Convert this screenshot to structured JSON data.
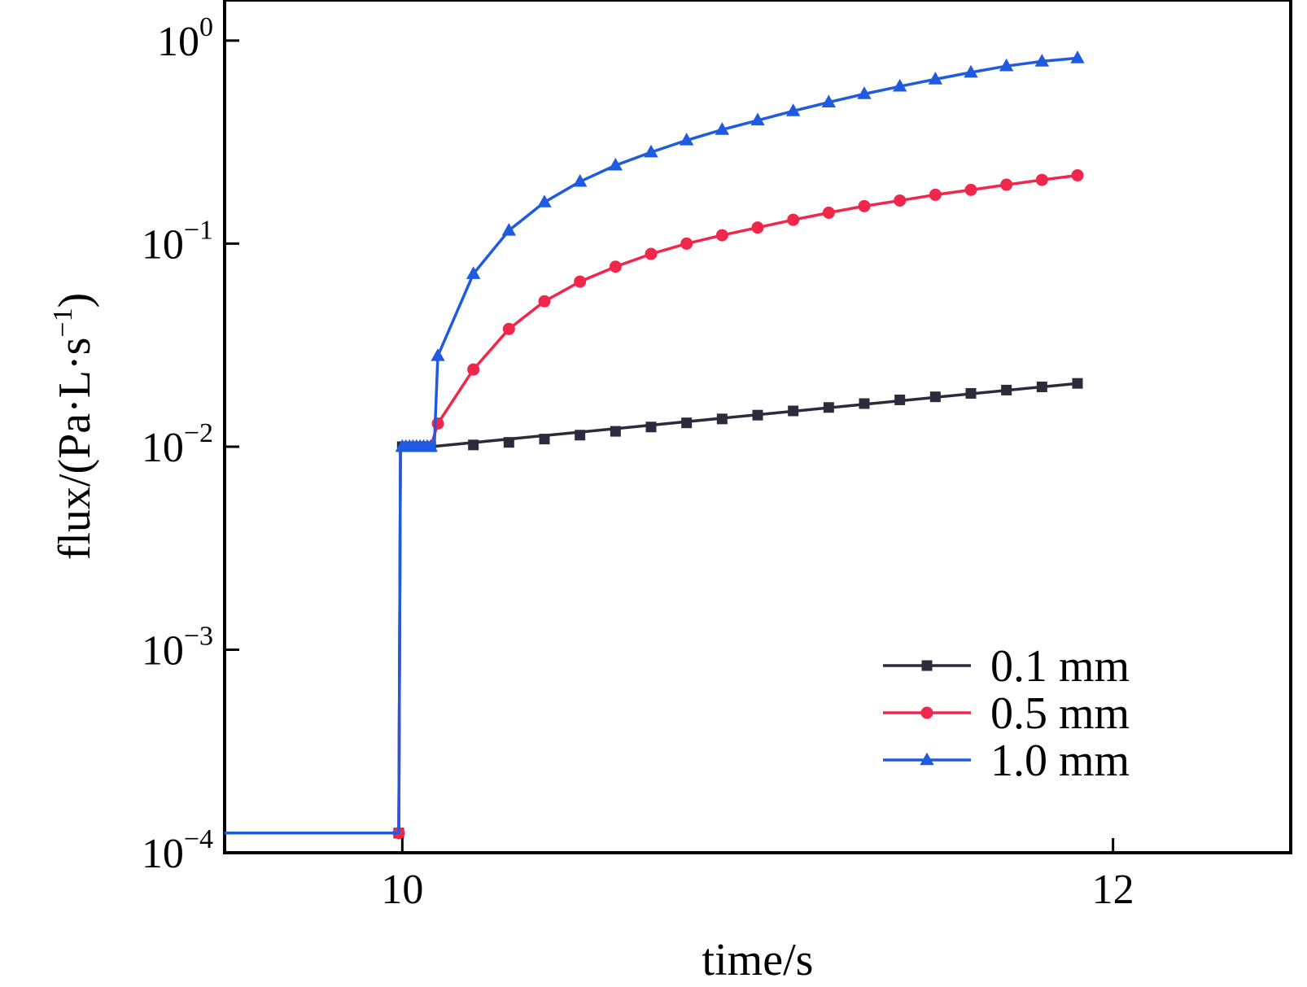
{
  "chart_data": {
    "type": "line",
    "xlabel": "time/s",
    "ylabel": {
      "base": "flux/(Pa·L·s",
      "exp": "−1",
      "close": ")"
    },
    "xlim": [
      9.5,
      12.5
    ],
    "ylim_log10": [
      -4,
      0.2
    ],
    "yscale": "log",
    "x_ticks": [
      {
        "value": 10,
        "label": "10"
      },
      {
        "value": 12,
        "label": "12"
      }
    ],
    "y_ticks": [
      {
        "exp_value": 0,
        "base": "10",
        "exp": "0"
      },
      {
        "exp_value": -1,
        "base": "10",
        "exp": "−1"
      },
      {
        "exp_value": -2,
        "base": "10",
        "exp": "−2"
      },
      {
        "exp_value": -3,
        "base": "10",
        "exp": "−3"
      },
      {
        "exp_value": -4,
        "base": "10",
        "exp": "−4"
      }
    ],
    "legend_position": "bottom-right",
    "series": [
      {
        "name": "0.1 mm",
        "color": "#2b2b3b",
        "marker": "square",
        "line": [
          [
            9.5,
            0.000125
          ],
          [
            9.99,
            0.000125
          ],
          [
            9.995,
            0.01
          ],
          [
            10.08,
            0.01
          ],
          [
            11.9,
            0.0205
          ]
        ],
        "markers": [
          [
            9.99,
            0.000125
          ],
          [
            10.0,
            0.01
          ],
          [
            10.01,
            0.01
          ],
          [
            10.02,
            0.01
          ],
          [
            10.03,
            0.01
          ],
          [
            10.04,
            0.01
          ],
          [
            10.05,
            0.01
          ],
          [
            10.06,
            0.01
          ],
          [
            10.07,
            0.01
          ],
          [
            10.08,
            0.01
          ],
          [
            10.2,
            0.0102
          ],
          [
            10.3,
            0.0105
          ],
          [
            10.4,
            0.0109
          ],
          [
            10.5,
            0.0114
          ],
          [
            10.6,
            0.0119
          ],
          [
            10.7,
            0.0125
          ],
          [
            10.8,
            0.0131
          ],
          [
            10.9,
            0.0137
          ],
          [
            11.0,
            0.0143
          ],
          [
            11.1,
            0.015
          ],
          [
            11.2,
            0.0156
          ],
          [
            11.3,
            0.0163
          ],
          [
            11.4,
            0.017
          ],
          [
            11.5,
            0.0176
          ],
          [
            11.6,
            0.0183
          ],
          [
            11.7,
            0.019
          ],
          [
            11.8,
            0.0197
          ],
          [
            11.9,
            0.0205
          ]
        ]
      },
      {
        "name": "0.5 mm",
        "color": "#f0264a",
        "marker": "circle",
        "line": [
          [
            9.5,
            0.000125
          ],
          [
            9.99,
            0.000125
          ],
          [
            9.995,
            0.01
          ],
          [
            10.08,
            0.01
          ],
          [
            10.1,
            0.013
          ],
          [
            10.2,
            0.024
          ],
          [
            10.3,
            0.038
          ],
          [
            10.4,
            0.052
          ],
          [
            10.5,
            0.065
          ],
          [
            10.6,
            0.077
          ],
          [
            10.7,
            0.089
          ],
          [
            10.8,
            0.1
          ],
          [
            10.9,
            0.11
          ],
          [
            11.0,
            0.12
          ],
          [
            11.1,
            0.131
          ],
          [
            11.2,
            0.142
          ],
          [
            11.3,
            0.153
          ],
          [
            11.4,
            0.163
          ],
          [
            11.5,
            0.174
          ],
          [
            11.6,
            0.184
          ],
          [
            11.7,
            0.195
          ],
          [
            11.8,
            0.206
          ],
          [
            11.9,
            0.217
          ]
        ],
        "markers": [
          [
            9.99,
            0.000125
          ],
          [
            10.1,
            0.013
          ],
          [
            10.2,
            0.024
          ],
          [
            10.3,
            0.038
          ],
          [
            10.4,
            0.052
          ],
          [
            10.5,
            0.065
          ],
          [
            10.6,
            0.077
          ],
          [
            10.7,
            0.089
          ],
          [
            10.8,
            0.1
          ],
          [
            10.9,
            0.11
          ],
          [
            11.0,
            0.12
          ],
          [
            11.1,
            0.131
          ],
          [
            11.2,
            0.142
          ],
          [
            11.3,
            0.153
          ],
          [
            11.4,
            0.163
          ],
          [
            11.5,
            0.174
          ],
          [
            11.6,
            0.184
          ],
          [
            11.7,
            0.195
          ],
          [
            11.8,
            0.206
          ],
          [
            11.9,
            0.217
          ]
        ]
      },
      {
        "name": "1.0 mm",
        "color": "#1f5be0",
        "marker": "triangle",
        "line": [
          [
            9.5,
            0.000125
          ],
          [
            9.99,
            0.000125
          ],
          [
            9.995,
            0.01
          ],
          [
            10.09,
            0.01
          ],
          [
            10.1,
            0.028
          ],
          [
            10.2,
            0.071
          ],
          [
            10.3,
            0.116
          ],
          [
            10.4,
            0.16
          ],
          [
            10.5,
            0.202
          ],
          [
            10.6,
            0.243
          ],
          [
            10.7,
            0.282
          ],
          [
            10.8,
            0.323
          ],
          [
            10.9,
            0.364
          ],
          [
            11.0,
            0.405
          ],
          [
            11.1,
            0.45
          ],
          [
            11.2,
            0.497
          ],
          [
            11.3,
            0.546
          ],
          [
            11.4,
            0.595
          ],
          [
            11.5,
            0.645
          ],
          [
            11.6,
            0.697
          ],
          [
            11.7,
            0.749
          ],
          [
            11.8,
            0.79
          ],
          [
            11.9,
            0.82
          ]
        ],
        "markers": [
          [
            10.0,
            0.01
          ],
          [
            10.01,
            0.01
          ],
          [
            10.02,
            0.01
          ],
          [
            10.03,
            0.01
          ],
          [
            10.04,
            0.01
          ],
          [
            10.05,
            0.01
          ],
          [
            10.06,
            0.01
          ],
          [
            10.07,
            0.01
          ],
          [
            10.08,
            0.01
          ],
          [
            10.1,
            0.028
          ],
          [
            10.2,
            0.071
          ],
          [
            10.3,
            0.116
          ],
          [
            10.4,
            0.16
          ],
          [
            10.5,
            0.202
          ],
          [
            10.6,
            0.243
          ],
          [
            10.7,
            0.282
          ],
          [
            10.8,
            0.323
          ],
          [
            10.9,
            0.364
          ],
          [
            11.0,
            0.405
          ],
          [
            11.1,
            0.45
          ],
          [
            11.2,
            0.497
          ],
          [
            11.3,
            0.546
          ],
          [
            11.4,
            0.595
          ],
          [
            11.5,
            0.645
          ],
          [
            11.6,
            0.697
          ],
          [
            11.7,
            0.749
          ],
          [
            11.8,
            0.79
          ],
          [
            11.9,
            0.82
          ]
        ]
      }
    ]
  }
}
